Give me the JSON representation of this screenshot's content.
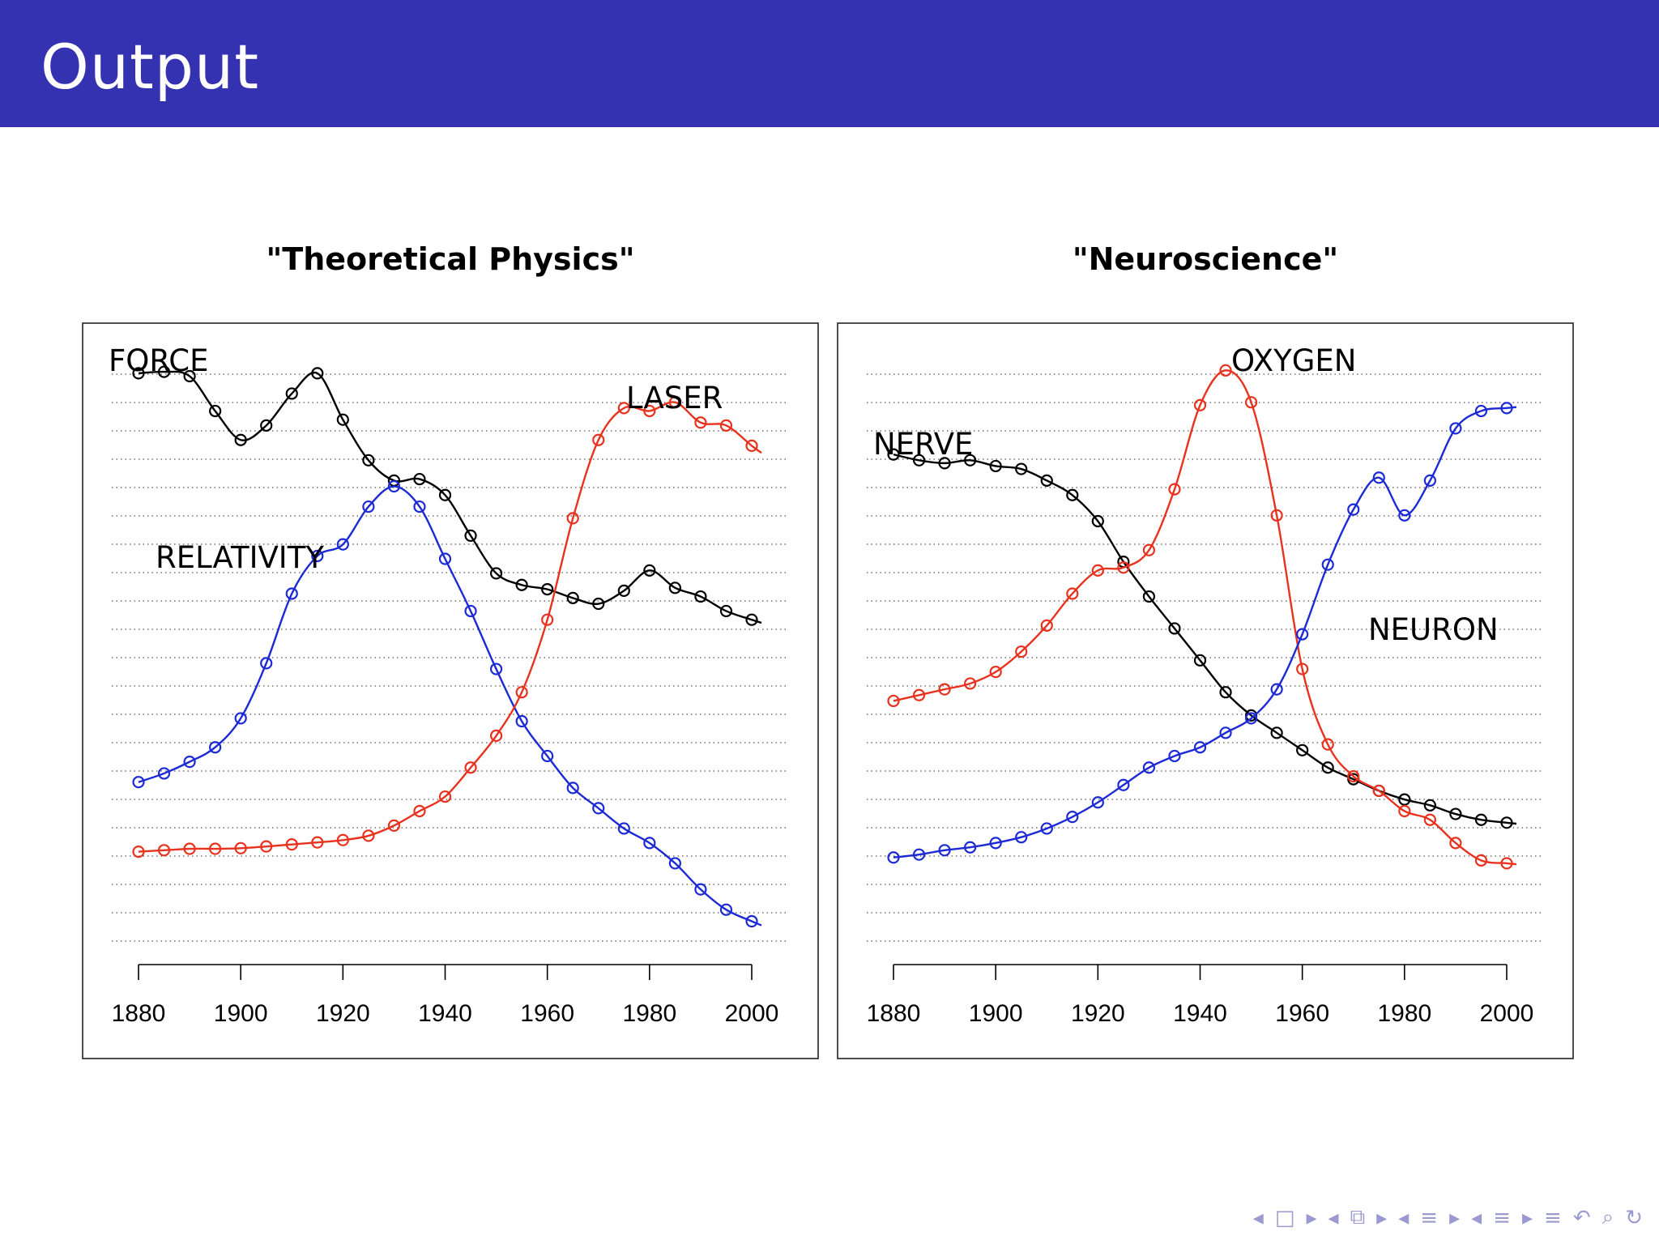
{
  "slide": {
    "title": "Output",
    "nav_icons": [
      "prev-frame-icon",
      "frame-icon",
      "next-frame-icon",
      "prev-section-icon",
      "section-icon",
      "next-section-icon",
      "prev-subsection-icon",
      "subsection-icon",
      "next-subsection-icon",
      "prev-slide-icon",
      "slide-icon",
      "next-slide-icon",
      "outline-icon",
      "search-icon",
      "zoom-icon",
      "undo-icon"
    ]
  },
  "colors": {
    "title_bar": "#3532b2",
    "black": "#000000",
    "red": "#e8321e",
    "blue": "#1c2ad6",
    "grid": "#555555"
  },
  "chart_data": [
    {
      "type": "line",
      "title": "\"Theoretical Physics\"",
      "xlim": [
        1880,
        2000
      ],
      "ylim": [
        0,
        20
      ],
      "grid": true,
      "xticks": [
        1880,
        1900,
        1920,
        1940,
        1960,
        1980,
        2000
      ],
      "x": [
        1880,
        1885,
        1890,
        1895,
        1900,
        1905,
        1910,
        1915,
        1920,
        1925,
        1930,
        1935,
        1940,
        1945,
        1950,
        1955,
        1960,
        1965,
        1970,
        1975,
        1980,
        1985,
        1990,
        1995,
        2000
      ],
      "series": [
        {
          "name": "FORCE",
          "color": "#000000",
          "values": [
            19.5,
            19.55,
            19.4,
            18.2,
            17.2,
            17.7,
            18.8,
            19.5,
            17.9,
            16.5,
            15.8,
            15.85,
            15.3,
            13.9,
            12.6,
            12.2,
            12.05,
            11.75,
            11.55,
            12.0,
            12.7,
            12.1,
            11.8,
            11.3,
            11.0
          ]
        },
        {
          "name": "RELATIVITY",
          "color": "#1c2ad6",
          "values": [
            5.4,
            5.7,
            6.1,
            6.6,
            7.6,
            9.5,
            11.9,
            13.2,
            13.6,
            14.9,
            15.6,
            14.9,
            13.1,
            11.3,
            9.3,
            7.5,
            6.3,
            5.2,
            4.5,
            3.8,
            3.3,
            2.6,
            1.7,
            1.0,
            0.6
          ]
        },
        {
          "name": "LASER",
          "color": "#e8321e",
          "values": [
            3.0,
            3.05,
            3.1,
            3.1,
            3.12,
            3.18,
            3.25,
            3.32,
            3.4,
            3.55,
            3.9,
            4.4,
            4.9,
            5.9,
            7.0,
            8.5,
            11.0,
            14.5,
            17.2,
            18.3,
            18.2,
            18.5,
            17.8,
            17.7,
            17.0
          ]
        }
      ],
      "labels": [
        "FORCE",
        "LASER",
        "RELATIVITY"
      ]
    },
    {
      "type": "line",
      "title": "\"Neuroscience\"",
      "xlim": [
        1880,
        2000
      ],
      "ylim": [
        0,
        20
      ],
      "grid": true,
      "xticks": [
        1880,
        1900,
        1920,
        1940,
        1960,
        1980,
        2000
      ],
      "x": [
        1880,
        1885,
        1890,
        1895,
        1900,
        1905,
        1910,
        1915,
        1920,
        1925,
        1930,
        1935,
        1940,
        1945,
        1950,
        1955,
        1960,
        1965,
        1970,
        1975,
        1980,
        1985,
        1990,
        1995,
        2000
      ],
      "series": [
        {
          "name": "NERVE",
          "color": "#000000",
          "values": [
            16.7,
            16.5,
            16.4,
            16.5,
            16.3,
            16.2,
            15.8,
            15.3,
            14.4,
            13.0,
            11.8,
            10.7,
            9.6,
            8.5,
            7.7,
            7.1,
            6.5,
            5.9,
            5.5,
            5.1,
            4.8,
            4.6,
            4.3,
            4.1,
            4.0
          ]
        },
        {
          "name": "OXYGEN",
          "color": "#e8321e",
          "values": [
            8.2,
            8.4,
            8.6,
            8.8,
            9.2,
            9.9,
            10.8,
            11.9,
            12.7,
            12.8,
            13.4,
            15.5,
            18.4,
            19.6,
            18.5,
            14.6,
            9.3,
            6.7,
            5.6,
            5.1,
            4.4,
            4.1,
            3.3,
            2.7,
            2.6
          ]
        },
        {
          "name": "NEURON",
          "color": "#1c2ad6",
          "values": [
            2.8,
            2.9,
            3.05,
            3.15,
            3.3,
            3.5,
            3.8,
            4.2,
            4.7,
            5.3,
            5.9,
            6.3,
            6.6,
            7.1,
            7.6,
            8.6,
            10.5,
            12.9,
            14.8,
            15.9,
            14.6,
            15.8,
            17.6,
            18.2,
            18.3
          ]
        }
      ],
      "labels": [
        "NERVE",
        "OXYGEN",
        "NEURON"
      ]
    }
  ]
}
